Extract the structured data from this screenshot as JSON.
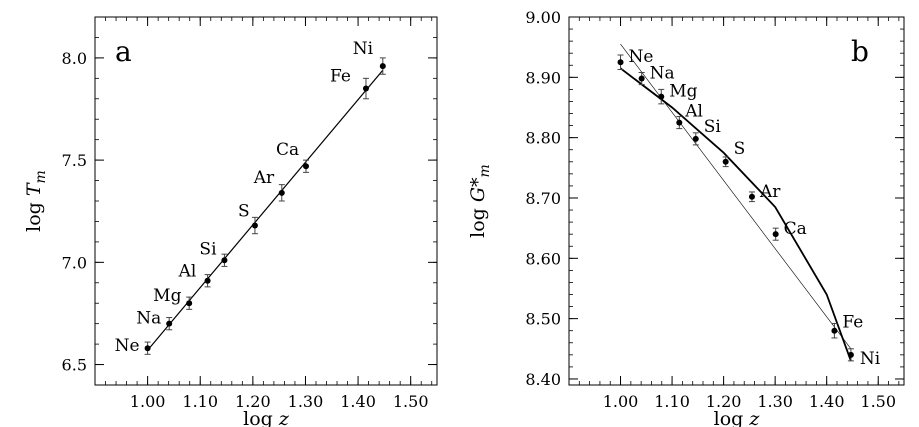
{
  "chart_data": [
    {
      "type": "scatter",
      "panel_letter": "a",
      "xlabel": "log z",
      "ylabel": "log T_m",
      "xlim": [
        0.9,
        1.55
      ],
      "ylim": [
        6.4,
        8.2
      ],
      "xticks": [
        "1.00",
        "1.10",
        "1.20",
        "1.30",
        "1.40",
        "1.50"
      ],
      "yticks": [
        "6.5",
        "7.0",
        "7.5",
        "8.0"
      ],
      "xtick_values": [
        1.0,
        1.1,
        1.2,
        1.3,
        1.4,
        1.5
      ],
      "ytick_values": [
        6.5,
        7.0,
        7.5,
        8.0
      ],
      "points": [
        {
          "label": "Ne",
          "x": 1.0,
          "y": 6.58,
          "err": 0.03
        },
        {
          "label": "Na",
          "x": 1.041,
          "y": 6.7,
          "err": 0.03
        },
        {
          "label": "Mg",
          "x": 1.079,
          "y": 6.8,
          "err": 0.03
        },
        {
          "label": "Al",
          "x": 1.114,
          "y": 6.91,
          "err": 0.03
        },
        {
          "label": "Si",
          "x": 1.146,
          "y": 7.01,
          "err": 0.03
        },
        {
          "label": "S",
          "x": 1.204,
          "y": 7.18,
          "err": 0.04
        },
        {
          "label": "Ar",
          "x": 1.255,
          "y": 7.34,
          "err": 0.04
        },
        {
          "label": "Ca",
          "x": 1.301,
          "y": 7.47,
          "err": 0.03
        },
        {
          "label": "Fe",
          "x": 1.415,
          "y": 7.85,
          "err": 0.05
        },
        {
          "label": "Ni",
          "x": 1.447,
          "y": 7.96,
          "err": 0.04
        }
      ],
      "fit_lines": [
        {
          "x": [
            1.0,
            1.447
          ],
          "y": [
            6.57,
            7.94
          ],
          "weight": "normal"
        }
      ]
    },
    {
      "type": "scatter",
      "panel_letter": "b",
      "xlabel": "log z",
      "ylabel": "log G*_m",
      "xlim": [
        0.9,
        1.55
      ],
      "ylim": [
        8.39,
        9.0
      ],
      "xticks": [
        "1.00",
        "1.10",
        "1.20",
        "1.30",
        "1.40",
        "1.50"
      ],
      "yticks": [
        "8.40",
        "8.50",
        "8.60",
        "8.70",
        "8.80",
        "8.90",
        "9.00"
      ],
      "xtick_values": [
        1.0,
        1.1,
        1.2,
        1.3,
        1.4,
        1.5
      ],
      "ytick_values": [
        8.4,
        8.5,
        8.6,
        8.7,
        8.8,
        8.9,
        9.0
      ],
      "points": [
        {
          "label": "Ne",
          "x": 1.0,
          "y": 8.925,
          "err": 0.012
        },
        {
          "label": "Na",
          "x": 1.041,
          "y": 8.898,
          "err": 0.01
        },
        {
          "label": "Mg",
          "x": 1.079,
          "y": 8.868,
          "err": 0.012
        },
        {
          "label": "Al",
          "x": 1.114,
          "y": 8.825,
          "err": 0.01
        },
        {
          "label": "Si",
          "x": 1.146,
          "y": 8.798,
          "err": 0.01
        },
        {
          "label": "S",
          "x": 1.204,
          "y": 8.76,
          "err": 0.008
        },
        {
          "label": "Ar",
          "x": 1.255,
          "y": 8.702,
          "err": 0.008
        },
        {
          "label": "Ca",
          "x": 1.301,
          "y": 8.64,
          "err": 0.01
        },
        {
          "label": "Fe",
          "x": 1.415,
          "y": 8.48,
          "err": 0.012
        },
        {
          "label": "Ni",
          "x": 1.447,
          "y": 8.44,
          "err": 0.01
        }
      ],
      "fit_lines": [
        {
          "x": [
            1.0,
            1.1,
            1.2,
            1.3,
            1.4,
            1.447
          ],
          "y": [
            8.915,
            8.85,
            8.775,
            8.685,
            8.54,
            8.43
          ],
          "weight": "bold"
        },
        {
          "x": [
            1.0,
            1.447
          ],
          "y": [
            8.955,
            8.45
          ],
          "weight": "thin"
        }
      ]
    }
  ]
}
